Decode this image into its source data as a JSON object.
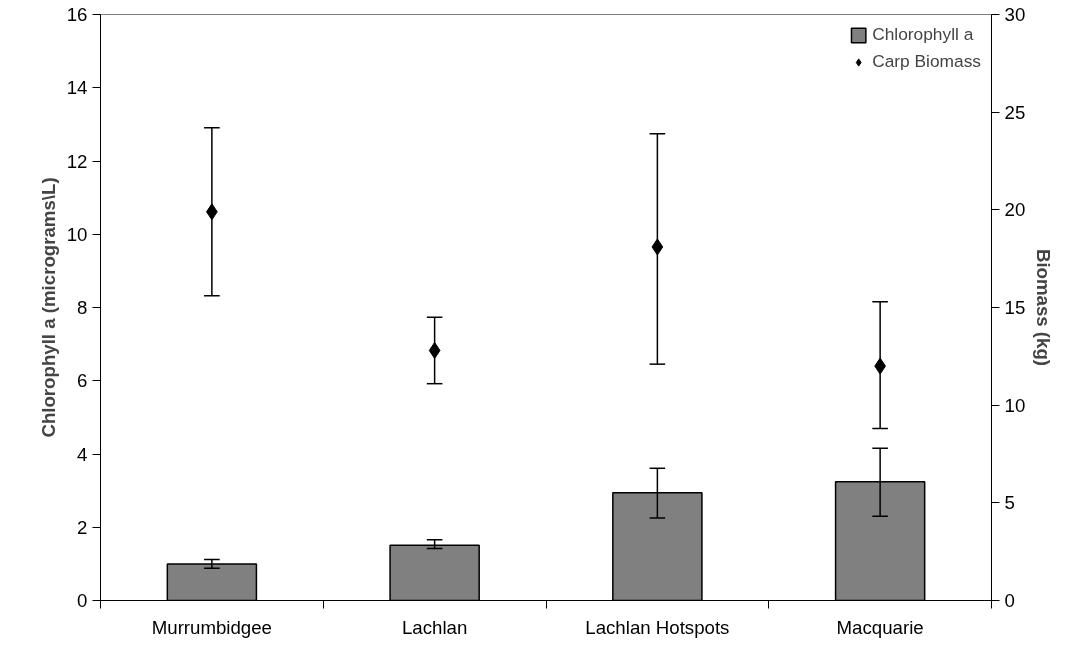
{
  "chart_data": {
    "type": "bar",
    "ylabel": "Chlorophyll a (micrograms\\L)",
    "y2label": "Biomass (kg)",
    "categories": [
      "Murrumbidgee",
      "Lachlan",
      "Lachlan Hotspots",
      "Macquarie"
    ],
    "series": [
      {
        "name": "Chlorophyll a",
        "color": "#808080",
        "values": [
          1.0,
          1.51,
          2.94,
          3.24
        ],
        "errors": [
          [
            0.88,
            1.12
          ],
          [
            1.42,
            1.66
          ],
          [
            2.25,
            3.61
          ],
          [
            2.3,
            4.16
          ]
        ]
      },
      {
        "name": "Carp Biomass",
        "type": "scatter",
        "axis": "y2",
        "marker": "diamond",
        "color": "#000000",
        "values": [
          19.9,
          12.8,
          18.1,
          12.0
        ],
        "errors": [
          [
            15.6,
            24.2
          ],
          [
            11.1,
            14.5
          ],
          [
            12.1,
            23.9
          ],
          [
            8.8,
            15.3
          ]
        ]
      }
    ],
    "ylim": [
      0,
      16
    ],
    "yticks": [
      0,
      2,
      4,
      6,
      8,
      10,
      12,
      14,
      16
    ],
    "y2lim": [
      0,
      30
    ],
    "y2ticks": [
      0,
      5,
      10,
      15,
      20,
      25,
      30
    ],
    "grid": false,
    "legend": "top right"
  }
}
